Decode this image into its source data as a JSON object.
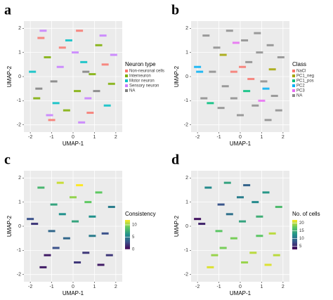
{
  "chart_data": [
    {
      "type": "scatter",
      "panel": "a",
      "xlabel": "UMAP-1",
      "ylabel": "UMAP-2",
      "xlim": [
        -2.3,
        2.3
      ],
      "xticks": [
        -2,
        -1,
        0,
        1,
        2
      ],
      "ylim": [
        -2.3,
        2.3
      ],
      "yticks": [
        -2,
        -1,
        0,
        1,
        2
      ],
      "grid": true,
      "legend_title": "Neuron type",
      "series": [
        {
          "name": "Non-neuronal cells",
          "color": "#F8766D",
          "x": [
            -1.5,
            -0.5,
            0.8,
            1.5,
            -1.0,
            0.3
          ],
          "values": [
            1.6,
            1.2,
            -1.5,
            0.5,
            -1.8,
            1.9
          ]
        },
        {
          "name": "Interneuron",
          "color": "#7CAE00",
          "x": [
            -1.2,
            0.2,
            1.2,
            -0.3,
            0.9,
            -1.7,
            1.8
          ],
          "values": [
            0.8,
            -0.6,
            1.3,
            -1.4,
            0.1,
            -0.9,
            -0.3
          ]
        },
        {
          "name": "Motor neuron",
          "color": "#00BFC4",
          "x": [
            -1.9,
            -0.8,
            0.5,
            1.6,
            -0.2
          ],
          "values": [
            0.2,
            -1.1,
            0.6,
            -1.2,
            1.5
          ]
        },
        {
          "name": "Sensory neuron",
          "color": "#C77CFF",
          "x": [
            -1.4,
            -0.6,
            0.1,
            0.7,
            1.4,
            -1.1,
            0.4,
            1.9
          ],
          "values": [
            1.9,
            0.4,
            1.0,
            -0.9,
            1.7,
            -1.6,
            -1.9,
            0.9
          ]
        },
        {
          "name": "NA",
          "color": "#7f7f7f",
          "x": [
            -0.9,
            0.6,
            -1.6,
            1.1
          ],
          "values": [
            -0.2,
            0.2,
            -0.5,
            -0.6
          ]
        }
      ]
    },
    {
      "type": "scatter",
      "panel": "b",
      "xlabel": "UMAP-1",
      "ylabel": "UMAP-2",
      "xlim": [
        -2.3,
        2.3
      ],
      "xticks": [
        -2,
        -1,
        0,
        1,
        2
      ],
      "ylim": [
        -2.3,
        2.3
      ],
      "yticks": [
        -2,
        -1,
        0,
        1,
        2
      ],
      "grid": true,
      "legend_title": "Class",
      "series": [
        {
          "name": "NaCl",
          "color": "#F8766D",
          "x": [
            -0.3,
            0.5,
            0.1
          ],
          "values": [
            0.2,
            -0.1,
            0.4
          ]
        },
        {
          "name": "PC1_neg",
          "color": "#A3A500",
          "x": [
            -0.8,
            1.5
          ],
          "values": [
            0.9,
            0.3
          ]
        },
        {
          "name": "PC1_pos",
          "color": "#00BF7D",
          "x": [
            -1.4,
            0.3
          ],
          "values": [
            -1.1,
            -0.6
          ]
        },
        {
          "name": "PC2",
          "color": "#00B0F6",
          "x": [
            -2.0,
            -1.9,
            1.2
          ],
          "values": [
            0.4,
            0.2,
            -0.5
          ]
        },
        {
          "name": "PC3",
          "color": "#E76BF3",
          "x": [
            -0.2,
            1.0
          ],
          "values": [
            1.4,
            -1.0
          ]
        },
        {
          "name": "NA",
          "color": "#8c8c8c",
          "x": [
            -1.6,
            -1.1,
            -0.5,
            0.2,
            0.8,
            1.4,
            1.9,
            -1.3,
            -0.7,
            0.4,
            1.1,
            1.6,
            -0.9,
            0.0,
            0.7,
            1.3,
            -0.3,
            0.9,
            -1.7,
            1.8
          ],
          "values": [
            1.7,
            1.2,
            1.9,
            1.5,
            1.8,
            1.3,
            0.8,
            0.2,
            -0.4,
            0.6,
            -0.2,
            -0.8,
            -1.3,
            -1.6,
            -1.2,
            -1.8,
            -0.9,
            1.0,
            -0.9,
            -1.4
          ]
        }
      ]
    },
    {
      "type": "colorscatter",
      "panel": "c",
      "xlabel": "UMAP-1",
      "ylabel": "UMAP-2",
      "xlim": [
        -2.3,
        2.3
      ],
      "xticks": [
        -2,
        -1,
        0,
        1,
        2
      ],
      "ylim": [
        -2.3,
        2.3
      ],
      "yticks": [
        -2,
        -1,
        0,
        1,
        2
      ],
      "grid": true,
      "legend_title": "Consistency",
      "colorlim": [
        0,
        12
      ],
      "colorticks": [
        0,
        5,
        10
      ],
      "x": [
        -2.0,
        -1.8,
        -1.5,
        -1.2,
        -0.9,
        -0.6,
        -0.3,
        0.0,
        0.3,
        0.6,
        0.9,
        1.2,
        1.5,
        1.8,
        -1.4,
        -1.0,
        -0.5,
        0.2,
        0.7,
        1.3,
        -0.8,
        0.1,
        0.9,
        1.7
      ],
      "values": [
        0.3,
        0.1,
        1.6,
        -1.2,
        0.9,
        1.8,
        -0.5,
        1.2,
        1.7,
        -1.1,
        0.4,
        1.4,
        -0.3,
        0.8,
        -1.7,
        -0.2,
        0.5,
        -1.5,
        1.0,
        -1.6,
        -0.9,
        0.2,
        -0.4,
        -1.2
      ],
      "color_values": [
        3,
        2,
        8,
        1,
        7,
        11,
        4,
        10,
        12,
        2,
        6,
        9,
        3,
        5,
        1,
        4,
        6,
        2,
        9,
        1,
        3,
        7,
        5,
        2
      ]
    },
    {
      "type": "colorscatter",
      "panel": "d",
      "xlabel": "UMAP-1",
      "ylabel": "UMAP-2",
      "xlim": [
        -2.3,
        2.3
      ],
      "xticks": [
        -2,
        -1,
        0,
        1,
        2
      ],
      "ylim": [
        -2.3,
        2.3
      ],
      "yticks": [
        -2,
        -1,
        0,
        1,
        2
      ],
      "grid": true,
      "legend_title": "No. of cells",
      "colorlim": [
        3,
        22
      ],
      "colorticks": [
        5,
        10,
        15,
        20
      ],
      "x": [
        -2.0,
        -1.8,
        -1.5,
        -1.2,
        -0.9,
        -0.6,
        -0.3,
        0.0,
        0.3,
        0.6,
        0.9,
        1.2,
        1.5,
        1.8,
        -1.4,
        -1.0,
        -0.5,
        0.2,
        0.7,
        1.3,
        -0.8,
        0.1,
        0.9,
        1.7
      ],
      "values": [
        0.3,
        0.1,
        1.6,
        -1.2,
        0.9,
        1.8,
        -0.5,
        1.2,
        1.7,
        -1.1,
        0.4,
        1.4,
        -0.3,
        0.8,
        -1.7,
        -0.2,
        0.5,
        -1.5,
        1.0,
        -1.6,
        -0.9,
        0.2,
        -0.4,
        -1.2
      ],
      "color_values": [
        4,
        5,
        12,
        19,
        8,
        14,
        18,
        11,
        9,
        20,
        15,
        13,
        20,
        16,
        21,
        17,
        10,
        19,
        12,
        21,
        18,
        14,
        17,
        20
      ]
    }
  ]
}
